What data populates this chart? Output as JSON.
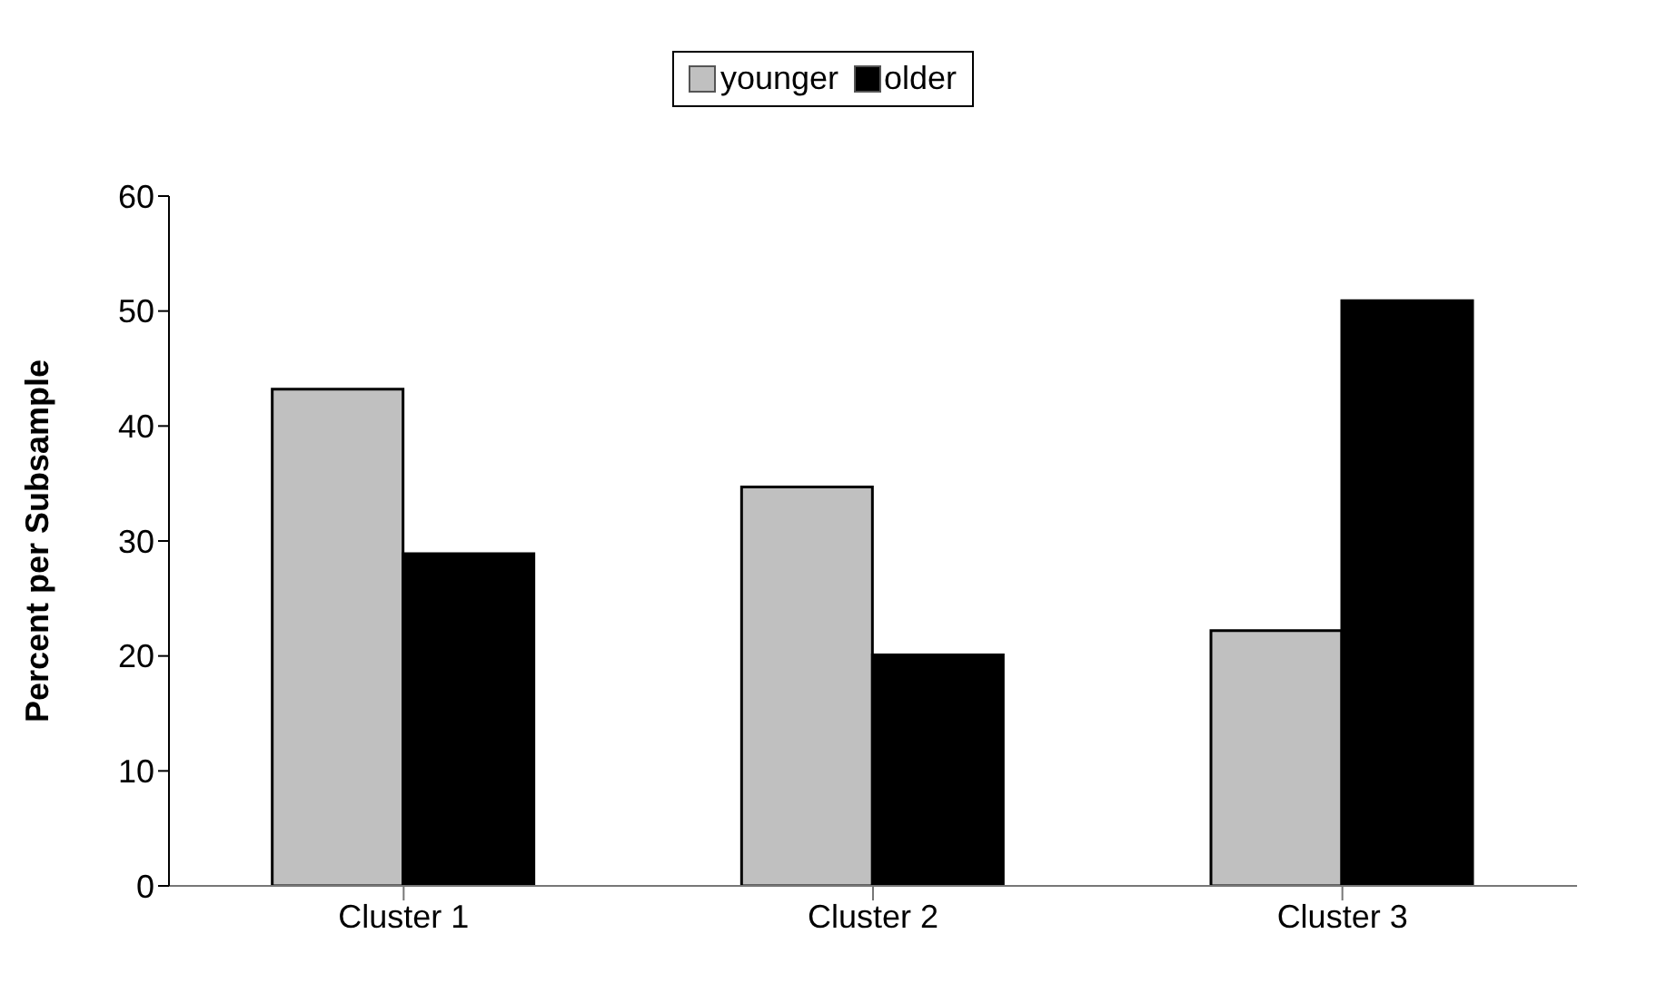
{
  "chart_data": {
    "type": "bar",
    "ylabel": "Percent per Subsample",
    "categories": [
      "Cluster 1",
      "Cluster 2",
      "Cluster 3"
    ],
    "series": [
      {
        "name": "younger",
        "color": "#c0c0c0",
        "values": [
          43.2,
          34.7,
          22.2
        ]
      },
      {
        "name": "older",
        "color": "#000000",
        "values": [
          28.9,
          20.1,
          50.9
        ]
      }
    ],
    "ylim": [
      0,
      60
    ],
    "yticks": [
      0,
      10,
      20,
      30,
      40,
      50,
      60
    ],
    "grid": false,
    "legend": "top"
  }
}
